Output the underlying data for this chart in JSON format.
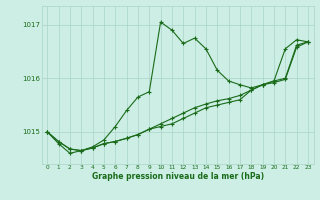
{
  "xlabel": "Graphe pression niveau de la mer (hPa)",
  "background_color": "#cceee4",
  "grid_color": "#aad4c8",
  "line_color": "#1a6b1a",
  "yticks": [
    1015,
    1016,
    1017
  ],
  "ylim": [
    1014.4,
    1017.35
  ],
  "xlim": [
    -0.5,
    23.5
  ],
  "series1": [
    1015.0,
    1014.78,
    1014.6,
    1014.65,
    1014.72,
    1014.85,
    1015.1,
    1015.4,
    1015.65,
    1015.75,
    1017.05,
    1016.9,
    1016.65,
    1016.75,
    1016.55,
    1016.15,
    1015.95,
    1015.88,
    1015.82,
    1015.88,
    1015.95,
    1016.55,
    1016.72,
    1016.68
  ],
  "series2": [
    1015.0,
    1014.82,
    1014.68,
    1014.65,
    1014.7,
    1014.78,
    1014.82,
    1014.88,
    1014.95,
    1015.05,
    1015.15,
    1015.25,
    1015.35,
    1015.45,
    1015.52,
    1015.58,
    1015.62,
    1015.68,
    1015.78,
    1015.88,
    1015.95,
    1016.0,
    1016.62,
    1016.68
  ],
  "series3": [
    1015.0,
    1014.82,
    1014.68,
    1014.65,
    1014.7,
    1014.78,
    1014.82,
    1014.88,
    1014.95,
    1015.05,
    1015.1,
    1015.15,
    1015.25,
    1015.35,
    1015.45,
    1015.5,
    1015.55,
    1015.6,
    1015.78,
    1015.88,
    1015.92,
    1015.98,
    1016.58,
    1016.68
  ],
  "xtick_fontsize": 4.2,
  "ytick_fontsize": 5.0,
  "xlabel_fontsize": 5.5,
  "marker_size": 2.5,
  "line_width": 0.8
}
